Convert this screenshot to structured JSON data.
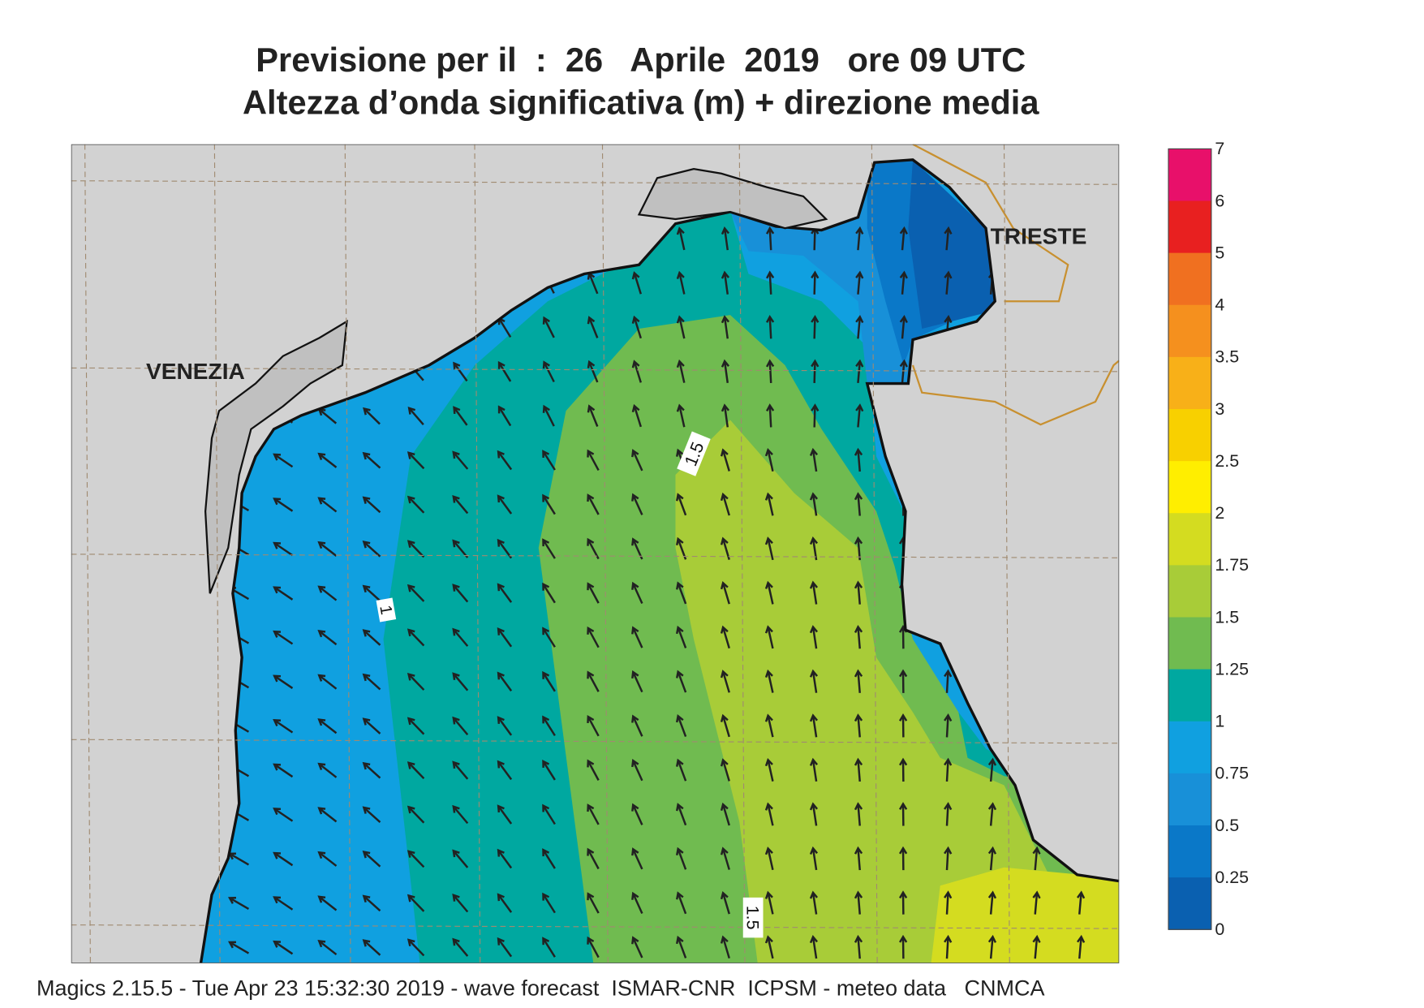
{
  "header": {
    "title": "Previsione per il  :  26   Aprile  2019   ore 09 UTC",
    "subtitle": "Altezza d’onda significativa (m) + direzione media"
  },
  "map": {
    "places": [
      "VENEZIA",
      "TRIESTE"
    ],
    "contour_labels": [
      "1.5",
      "1",
      "1.5"
    ]
  },
  "legend": {
    "levels": [
      7,
      6,
      5,
      4,
      3.5,
      3,
      2.5,
      2,
      1.75,
      1.5,
      1.25,
      1,
      0.75,
      0.5,
      0.25,
      0
    ],
    "colors": [
      "#e8106a",
      "#e82020",
      "#f07020",
      "#f5901e",
      "#f8b018",
      "#f8d000",
      "#ffee00",
      "#d4dc20",
      "#a8cc38",
      "#70bb50",
      "#00a8a0",
      "#10a0e0",
      "#1890d8",
      "#0a78c8",
      "#0a60b0"
    ]
  },
  "footer": "Magics 2.15.5 - Tue Apr 23 15:32:30 2019 - wave forecast  ISMAR-CNR  ICPSM - meteo data   CNMCA"
}
